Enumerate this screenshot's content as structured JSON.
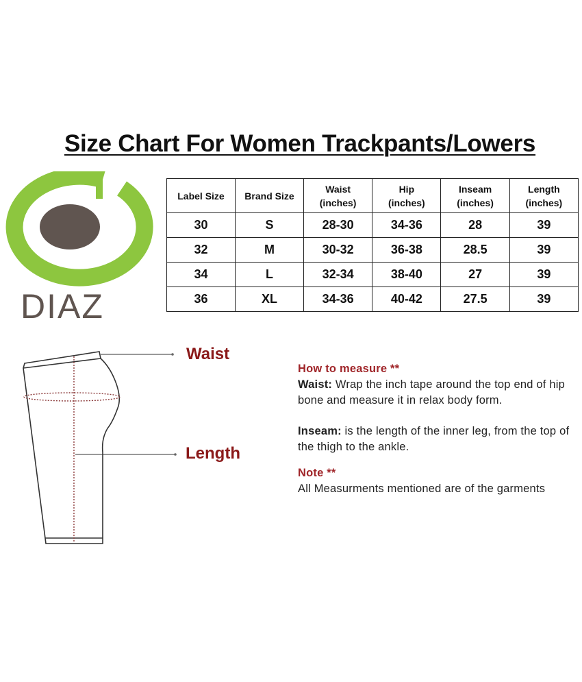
{
  "title": "Size Chart For Women Trackpants/Lowers",
  "logo": {
    "text": "DIAZ",
    "ring_color": "#8dc63f",
    "dot_color": "#605550",
    "text_color": "#605550"
  },
  "table": {
    "headers": [
      {
        "line1": "Label Size",
        "line2": ""
      },
      {
        "line1": "Brand Size",
        "line2": ""
      },
      {
        "line1": "Waist",
        "line2": "(inches)"
      },
      {
        "line1": "Hip",
        "line2": "(inches)"
      },
      {
        "line1": "Inseam",
        "line2": "(inches)"
      },
      {
        "line1": "Length",
        "line2": "(inches)"
      }
    ],
    "rows": [
      [
        "30",
        "S",
        "28-30",
        "34-36",
        "28",
        "39"
      ],
      [
        "32",
        "M",
        "30-32",
        "36-38",
        "28.5",
        "39"
      ],
      [
        "34",
        "L",
        "32-34",
        "38-40",
        "27",
        "39"
      ],
      [
        "36",
        "XL",
        "34-36",
        "40-42",
        "27.5",
        "39"
      ]
    ]
  },
  "diagram": {
    "waist_label": "Waist",
    "length_label": "Length",
    "label_color": "#8b1a1a"
  },
  "instructions": {
    "heading": "How to measure **",
    "waist_term": "Waist:",
    "waist_text": " Wrap the inch tape around the top end of hip bone and measure it in relax body form.",
    "inseam_term": "Inseam:",
    "inseam_text": " is the length of the inner leg, from the top of the thigh to the ankle.",
    "note_heading": "Note **",
    "note_text": "All Measurments mentioned are of the garments"
  }
}
